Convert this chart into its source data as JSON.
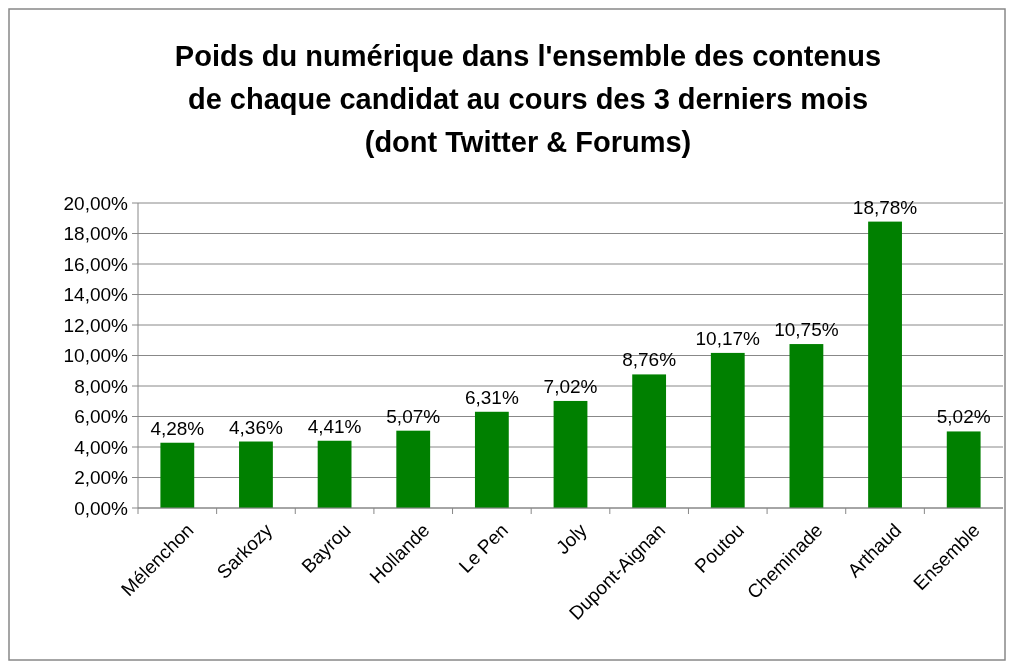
{
  "chart_data": {
    "type": "bar",
    "title": "Poids du numérique dans l'ensemble des contenus\nde chaque candidat au cours des 3 derniers mois\n(dont Twitter & Forums)",
    "categories": [
      "Mélenchon",
      "Sarkozy",
      "Bayrou",
      "Hollande",
      "Le Pen",
      "Joly",
      "Dupont-Aignan",
      "Poutou",
      "Cheminade",
      "Arthaud",
      "Ensemble"
    ],
    "values": [
      4.28,
      4.36,
      4.41,
      5.07,
      6.31,
      7.02,
      8.76,
      10.17,
      10.75,
      18.78,
      5.02
    ],
    "value_labels": [
      "4,28%",
      "4,36%",
      "4,41%",
      "5,07%",
      "6,31%",
      "7,02%",
      "8,76%",
      "10,17%",
      "10,75%",
      "18,78%",
      "5,02%"
    ],
    "color": "#008000",
    "ylim": [
      0,
      20
    ],
    "yticks": [
      {
        "value": 0,
        "label": "0,00%"
      },
      {
        "value": 2,
        "label": "2,00%"
      },
      {
        "value": 4,
        "label": "4,00%"
      },
      {
        "value": 6,
        "label": "6,00%"
      },
      {
        "value": 8,
        "label": "8,00%"
      },
      {
        "value": 10,
        "label": "10,00%"
      },
      {
        "value": 12,
        "label": "12,00%"
      },
      {
        "value": 14,
        "label": "14,00%"
      },
      {
        "value": 16,
        "label": "16,00%"
      },
      {
        "value": 18,
        "label": "18,00%"
      },
      {
        "value": 20,
        "label": "20,00%"
      }
    ],
    "grid": "y"
  }
}
